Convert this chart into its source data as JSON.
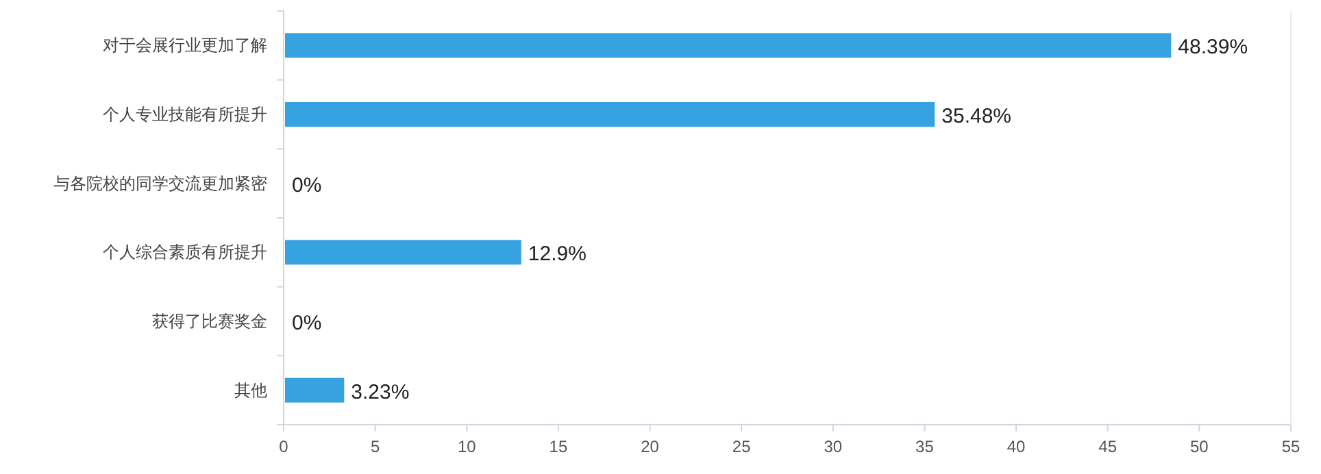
{
  "chart_data": {
    "type": "bar",
    "orientation": "horizontal",
    "categories": [
      "对于会展行业更加了解",
      "个人专业技能有所提升",
      "与各院校的同学交流更加紧密",
      "个人综合素质有所提升",
      "获得了比赛奖金",
      "其他"
    ],
    "values": [
      48.39,
      35.48,
      0,
      12.9,
      0,
      3.23
    ],
    "value_labels": [
      "48.39%",
      "35.48%",
      "0%",
      "12.9%",
      "0%",
      "3.23%"
    ],
    "color": "#36a3e0",
    "xlim": [
      0,
      55
    ],
    "xticks": [
      0,
      5,
      10,
      15,
      20,
      25,
      30,
      35,
      40,
      45,
      50,
      55
    ],
    "grid": false
  }
}
